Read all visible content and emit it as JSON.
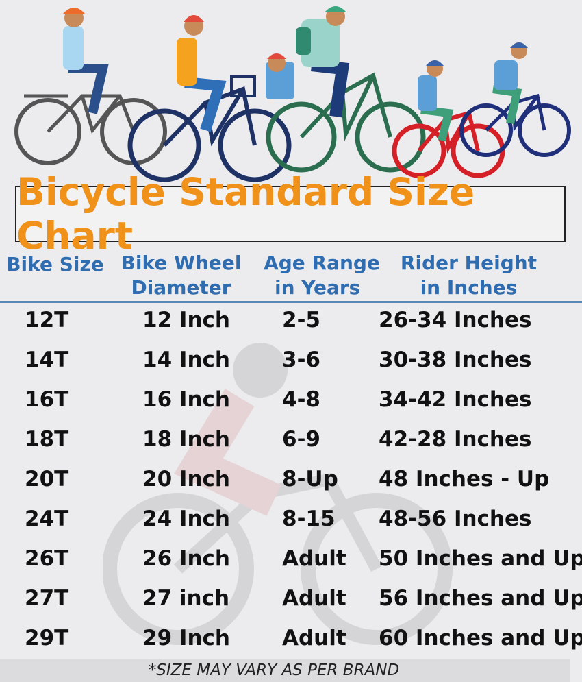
{
  "title": "Bicycle Standard Size Chart",
  "headers": {
    "bike_size": "Bike Size",
    "wheel_line1": "Bike Wheel",
    "wheel_line2": "Diameter",
    "age_line1": "Age Range",
    "age_line2": "in Years",
    "height_line1": "Rider Height",
    "height_line2": "in Inches"
  },
  "rows": [
    {
      "size": "12T",
      "wheel": "12 Inch",
      "age": "2-5",
      "height": "26-34 Inches"
    },
    {
      "size": "14T",
      "wheel": "14 Inch",
      "age": "3-6",
      "height": "30-38 Inches"
    },
    {
      "size": "16T",
      "wheel": "16 Inch",
      "age": "4-8",
      "height": "34-42 Inches"
    },
    {
      "size": "18T",
      "wheel": "18 Inch",
      "age": "6-9",
      "height": "42-28 Inches"
    },
    {
      "size": "20T",
      "wheel": "20 Inch",
      "age": "8-Up",
      "height": "48 Inches - Up"
    },
    {
      "size": "24T",
      "wheel": "24 Inch",
      "age": "8-15",
      "height": "48-56 Inches"
    },
    {
      "size": "26T",
      "wheel": "26 Inch",
      "age": "Adult",
      "height": "50 Inches and Up"
    },
    {
      "size": "27T",
      "wheel": "27 inch",
      "age": "Adult",
      "height": "56 Inches and Up"
    },
    {
      "size": "29T",
      "wheel": "29 Inch",
      "age": "Adult",
      "height": "60 Inches and Up"
    }
  ],
  "footer": "*SIZE MAY VARY AS PER BRAND",
  "colors": {
    "title": "#f0921a",
    "header": "#2f6cb0",
    "divider": "#5b87b4",
    "background": "#ececee"
  }
}
